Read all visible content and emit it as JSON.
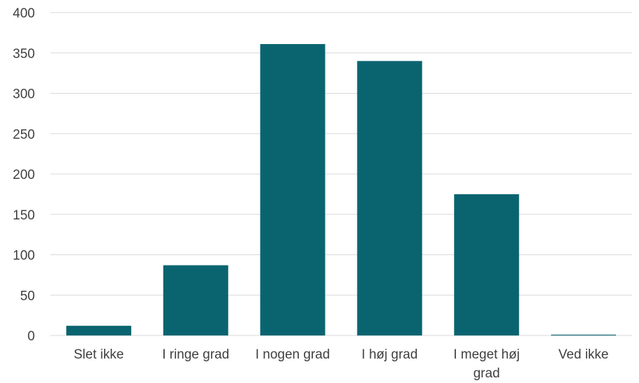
{
  "chart_data": {
    "type": "bar",
    "categories": [
      [
        "Slet ikke"
      ],
      [
        "I ringe grad"
      ],
      [
        "I nogen grad"
      ],
      [
        "I høj grad"
      ],
      [
        "I meget høj",
        "grad"
      ],
      [
        "Ved ikke"
      ]
    ],
    "values": [
      12,
      87,
      361,
      340,
      175,
      1
    ],
    "ylim": [
      0,
      400
    ],
    "yticks": [
      0,
      50,
      100,
      150,
      200,
      250,
      300,
      350,
      400
    ],
    "grid": true,
    "legend": "none",
    "title": "",
    "xlabel": "",
    "ylabel": "",
    "colors": {
      "bar": "#0a6470",
      "grid": "#d9d9d9",
      "text": "#404040"
    }
  }
}
